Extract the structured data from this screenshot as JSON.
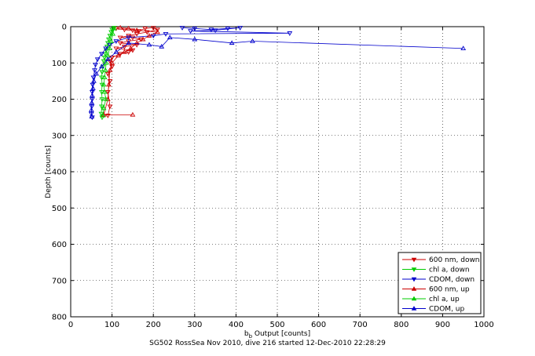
{
  "chart_data": {
    "type": "scatter",
    "xlabel": "b",
    "xlabel_sub": "b",
    "xlabel_rest": " Output [counts]",
    "ylabel": "Depth [counts]",
    "xlim": [
      0,
      1000
    ],
    "ylim": [
      0,
      800
    ],
    "y_reversed": true,
    "x_ticks": [
      0,
      100,
      200,
      300,
      400,
      500,
      600,
      700,
      800,
      900,
      1000
    ],
    "y_ticks": [
      0,
      100,
      200,
      300,
      400,
      500,
      600,
      700,
      800
    ],
    "grid": true,
    "legend_position": "bottom-right",
    "series": [
      {
        "name": "600 nm, down",
        "color": "#cc0000",
        "marker": "triangle-down",
        "points": [
          [
            110,
            5
          ],
          [
            130,
            8
          ],
          [
            150,
            10
          ],
          [
            165,
            12
          ],
          [
            180,
            5
          ],
          [
            200,
            3
          ],
          [
            210,
            8
          ],
          [
            185,
            15
          ],
          [
            160,
            20
          ],
          [
            140,
            25
          ],
          [
            120,
            30
          ],
          [
            150,
            30
          ],
          [
            170,
            35
          ],
          [
            140,
            40
          ],
          [
            120,
            45
          ],
          [
            160,
            50
          ],
          [
            130,
            55
          ],
          [
            110,
            60
          ],
          [
            150,
            65
          ],
          [
            140,
            70
          ],
          [
            120,
            75
          ],
          [
            100,
            85
          ],
          [
            95,
            95
          ],
          [
            100,
            110
          ],
          [
            90,
            130
          ],
          [
            95,
            150
          ],
          [
            90,
            180
          ],
          [
            95,
            220
          ],
          [
            90,
            245
          ]
        ]
      },
      {
        "name": "chl a, down",
        "color": "#00cc00",
        "marker": "triangle-down",
        "points": [
          [
            105,
            3
          ],
          [
            100,
            8
          ],
          [
            98,
            15
          ],
          [
            95,
            25
          ],
          [
            92,
            35
          ],
          [
            90,
            45
          ],
          [
            88,
            55
          ],
          [
            86,
            65
          ],
          [
            84,
            75
          ],
          [
            82,
            85
          ],
          [
            80,
            95
          ],
          [
            78,
            110
          ],
          [
            76,
            125
          ],
          [
            75,
            140
          ],
          [
            76,
            160
          ],
          [
            75,
            180
          ],
          [
            76,
            200
          ],
          [
            75,
            220
          ],
          [
            74,
            240
          ],
          [
            76,
            250
          ]
        ]
      },
      {
        "name": "CDOM, down",
        "color": "#0000cc",
        "marker": "triangle-down",
        "points": [
          [
            270,
            3
          ],
          [
            300,
            5
          ],
          [
            340,
            8
          ],
          [
            380,
            5
          ],
          [
            410,
            3
          ],
          [
            350,
            10
          ],
          [
            290,
            12
          ],
          [
            530,
            18
          ],
          [
            230,
            20
          ],
          [
            200,
            25
          ],
          [
            140,
            30
          ],
          [
            110,
            40
          ],
          [
            95,
            50
          ],
          [
            85,
            60
          ],
          [
            75,
            75
          ],
          [
            65,
            90
          ],
          [
            60,
            105
          ],
          [
            58,
            120
          ],
          [
            55,
            140
          ],
          [
            53,
            160
          ],
          [
            52,
            180
          ],
          [
            52,
            200
          ],
          [
            51,
            220
          ],
          [
            50,
            240
          ],
          [
            52,
            250
          ]
        ]
      },
      {
        "name": "600 nm, up",
        "color": "#cc0000",
        "marker": "triangle-up",
        "points": [
          [
            150,
            243
          ],
          [
            80,
            243
          ],
          [
            90,
            200
          ],
          [
            92,
            160
          ],
          [
            95,
            120
          ],
          [
            100,
            100
          ],
          [
            115,
            80
          ],
          [
            130,
            70
          ],
          [
            145,
            60
          ],
          [
            160,
            45
          ],
          [
            175,
            35
          ],
          [
            190,
            25
          ],
          [
            210,
            15
          ],
          [
            160,
            10
          ],
          [
            140,
            5
          ],
          [
            120,
            3
          ]
        ]
      },
      {
        "name": "chl a, up",
        "color": "#00cc00",
        "marker": "triangle-up",
        "points": [
          [
            78,
            245
          ],
          [
            80,
            225
          ],
          [
            85,
            200
          ],
          [
            82,
            180
          ],
          [
            80,
            160
          ],
          [
            82,
            140
          ],
          [
            84,
            120
          ],
          [
            86,
            100
          ],
          [
            90,
            80
          ],
          [
            94,
            60
          ],
          [
            98,
            40
          ],
          [
            102,
            20
          ],
          [
            105,
            5
          ]
        ]
      },
      {
        "name": "CDOM, up",
        "color": "#0000cc",
        "marker": "triangle-up",
        "points": [
          [
            950,
            60
          ],
          [
            440,
            40
          ],
          [
            390,
            45
          ],
          [
            300,
            35
          ],
          [
            240,
            30
          ],
          [
            220,
            55
          ],
          [
            190,
            50
          ],
          [
            140,
            45
          ],
          [
            110,
            70
          ],
          [
            90,
            90
          ],
          [
            75,
            110
          ],
          [
            62,
            130
          ],
          [
            56,
            150
          ],
          [
            54,
            170
          ],
          [
            52,
            190
          ],
          [
            51,
            210
          ],
          [
            50,
            230
          ],
          [
            51,
            248
          ]
        ]
      }
    ]
  },
  "caption": "SG502 RossSea Nov 2010, dive 216 started 12-Dec-2010 22:28:29"
}
